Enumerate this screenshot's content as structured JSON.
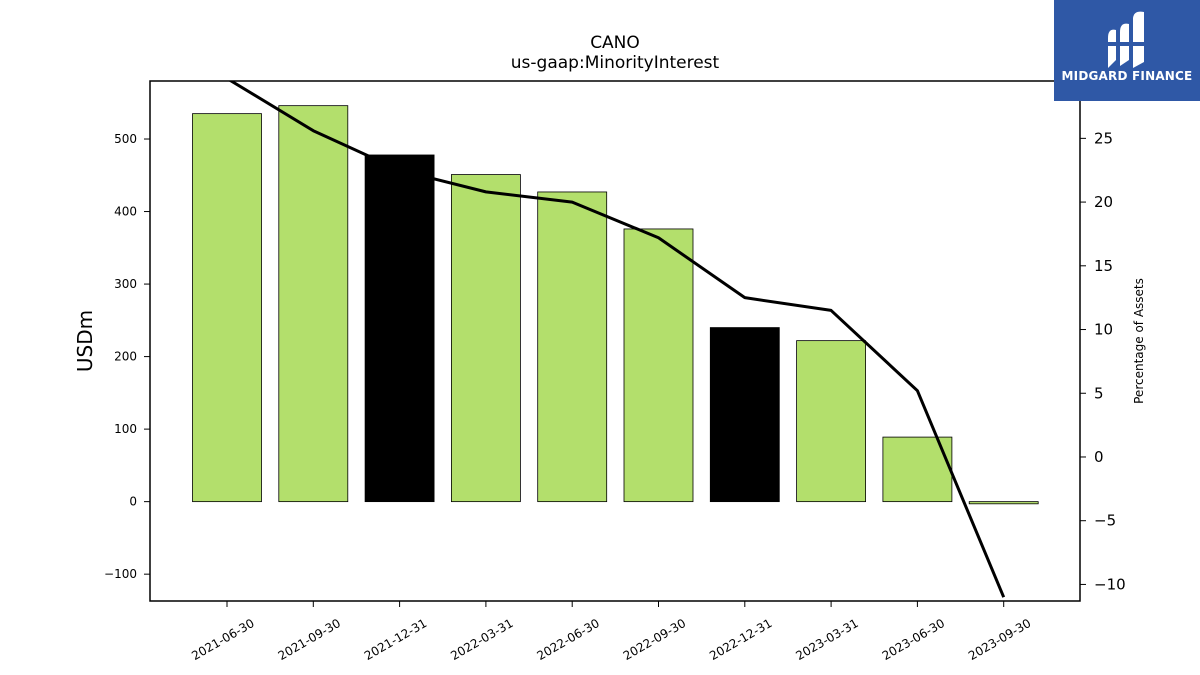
{
  "chart_data": {
    "type": "bar",
    "title": "CANO",
    "subtitle": "us-gaap:MinorityInterest",
    "ylabel": "USDm",
    "y2label": "Percentage of Assets",
    "categories": [
      "2021-06-30",
      "2021-09-30",
      "2021-12-31",
      "2022-03-31",
      "2022-06-30",
      "2022-09-30",
      "2022-12-31",
      "2023-03-31",
      "2023-06-30",
      "2023-09-30"
    ],
    "values": [
      535,
      546,
      478,
      451,
      427,
      376,
      240,
      222,
      89,
      -3
    ],
    "bar_colors": [
      "#b3df6c",
      "#b3df6c",
      "#000000",
      "#b3df6c",
      "#b3df6c",
      "#b3df6c",
      "#000000",
      "#b3df6c",
      "#b3df6c",
      "#b3df6c"
    ],
    "line": {
      "axis": "right",
      "color": "#000000",
      "values": [
        29.7,
        25.6,
        22.5,
        20.8,
        20.0,
        17.2,
        12.5,
        11.5,
        5.2,
        -11.0
      ]
    },
    "ylim": [
      -137,
      580
    ],
    "y2lim": [
      -11.3,
      29.5
    ],
    "yticks": [
      -100,
      0,
      100,
      200,
      300,
      400,
      500
    ],
    "ytick_labels": [
      "−100",
      "0",
      "100",
      "200",
      "300",
      "400",
      "500"
    ],
    "y2ticks": [
      -10,
      -5,
      0,
      5,
      10,
      15,
      20,
      25
    ],
    "y2tick_labels": [
      "−10",
      "−5",
      "0",
      "5",
      "10",
      "15",
      "20",
      "25"
    ],
    "grid": false,
    "legend": "none"
  },
  "logo": {
    "text": "MIDGARD FINANCE",
    "background": "#2f58a6"
  }
}
